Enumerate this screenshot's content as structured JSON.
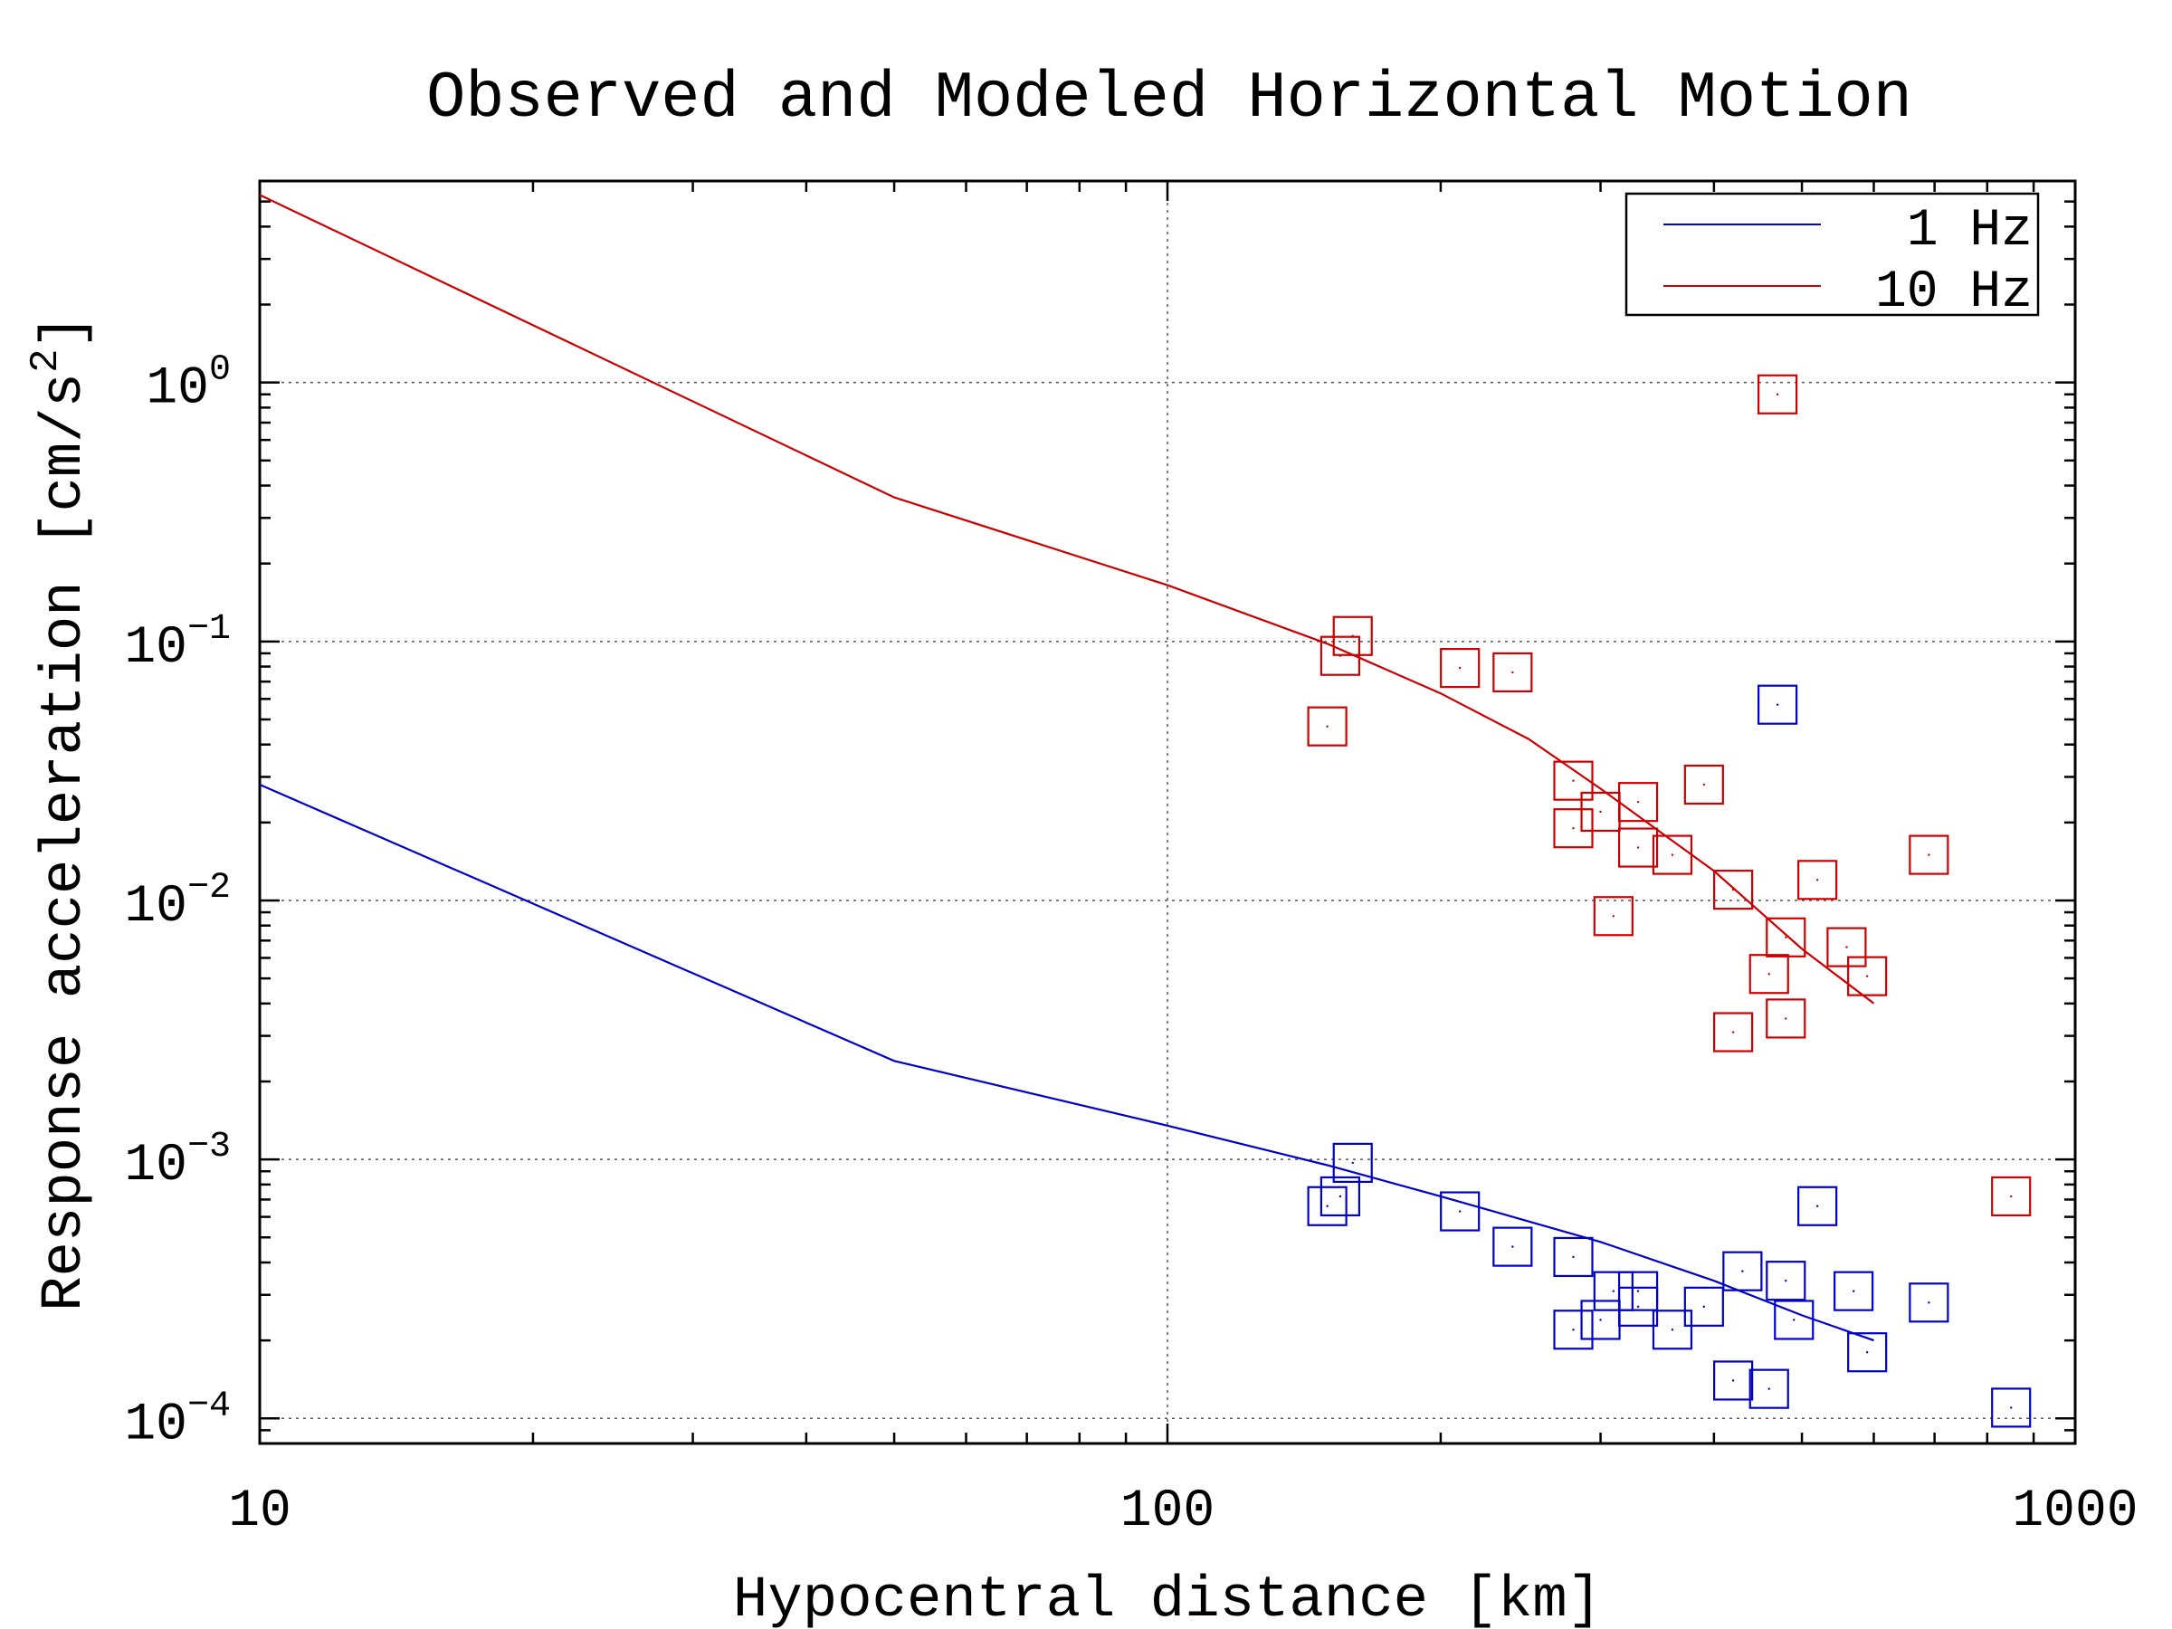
{
  "chart_data": {
    "type": "scatter",
    "title": "Observed and Modeled Horizontal Motion",
    "xlabel": "Hypocentral distance [km]",
    "ylabel": "Response acceleration [cm/s",
    "ylabel_sup": "2",
    "ylabel_end": "]",
    "x_scale": "log",
    "y_scale": "log",
    "xlim": [
      10,
      1000
    ],
    "ylim": [
      8e-05,
      6
    ],
    "grid": true,
    "legend_position": "top-right",
    "x_ticks": [
      {
        "value": 10,
        "label": "10"
      },
      {
        "value": 100,
        "label": "100"
      },
      {
        "value": 1000,
        "label": "1000"
      }
    ],
    "y_ticks": [
      {
        "value": 1,
        "base": "10",
        "exp": "0"
      },
      {
        "value": 0.1,
        "base": "10",
        "exp": "−1"
      },
      {
        "value": 0.01,
        "base": "10",
        "exp": "−2"
      },
      {
        "value": 0.001,
        "base": "10",
        "exp": "−3"
      },
      {
        "value": 0.0001,
        "base": "10",
        "exp": "−4"
      }
    ],
    "series": [
      {
        "name": "1 Hz",
        "kind": "line",
        "color": "#0000cc",
        "x": [
          10,
          50,
          100,
          150,
          200,
          300,
          400,
          500,
          600
        ],
        "y": [
          0.028,
          0.0024,
          0.00135,
          0.00095,
          0.00072,
          0.00048,
          0.00034,
          0.00025,
          0.0002
        ]
      },
      {
        "name": "10 Hz",
        "kind": "line",
        "color": "#cc0000",
        "x": [
          10,
          50,
          100,
          150,
          200,
          250,
          300,
          400,
          500,
          600
        ],
        "y": [
          5.3,
          0.36,
          0.165,
          0.098,
          0.063,
          0.042,
          0.027,
          0.013,
          0.0065,
          0.004
        ]
      },
      {
        "name": "",
        "kind": "markers",
        "color": "#0000cc",
        "x": [
          155,
          150,
          160,
          210,
          240,
          280,
          280,
          310,
          300,
          330,
          330,
          360,
          390,
          420,
          430,
          460,
          470,
          480,
          490,
          520,
          570,
          590,
          690,
          850
        ],
        "y": [
          0.00072,
          0.00066,
          0.00097,
          0.00063,
          0.00046,
          0.00042,
          0.00022,
          0.00031,
          0.00024,
          0.00031,
          0.00027,
          0.00022,
          0.00027,
          0.00014,
          0.00037,
          0.00013,
          0.057,
          0.00034,
          0.00024,
          0.00066,
          0.00031,
          0.00018,
          0.00028,
          0.00011
        ]
      },
      {
        "name": "",
        "kind": "markers",
        "color": "#cc0000",
        "x": [
          150,
          155,
          160,
          210,
          240,
          280,
          280,
          300,
          310,
          330,
          330,
          360,
          390,
          420,
          420,
          460,
          470,
          480,
          480,
          520,
          560,
          590,
          690,
          850
        ],
        "y": [
          0.047,
          0.088,
          0.105,
          0.079,
          0.076,
          0.029,
          0.019,
          0.022,
          0.0087,
          0.016,
          0.024,
          0.015,
          0.028,
          0.0031,
          0.011,
          0.0052,
          0.9,
          0.0072,
          0.0035,
          0.012,
          0.0066,
          0.0051,
          0.015,
          0.00072
        ]
      }
    ]
  }
}
